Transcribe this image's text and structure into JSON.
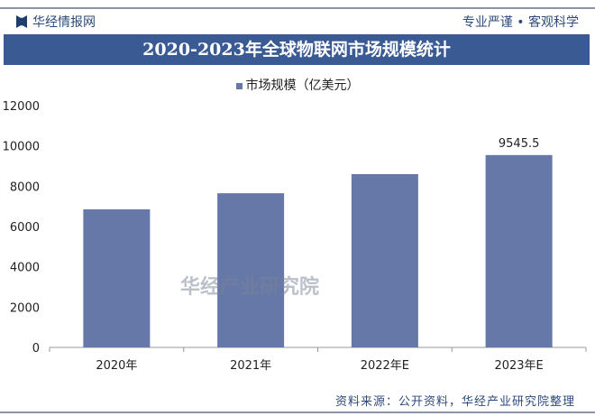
{
  "header": {
    "brand": "华经情报网",
    "slogan": "专业严谨 • 客观科学",
    "title": "2020-2023年全球物联网市场规模统计"
  },
  "footer": {
    "source": "资料来源：公开资料，华经产业研究院整理",
    "watermark": "华经产业研究院",
    "watermark_url": "www.huaon.com"
  },
  "colors": {
    "bar": "#6678a8",
    "title_bg": "#3a5a94"
  },
  "chart_data": {
    "type": "bar",
    "title": "2020-2023年全球物联网市场规模统计",
    "categories": [
      "2020年",
      "2021年",
      "2022年E",
      "2023年E"
    ],
    "series": [
      {
        "name": "市场规模（亿美元）",
        "values": [
          6850,
          7650,
          8600,
          9545.5
        ]
      }
    ],
    "data_labels": [
      null,
      null,
      null,
      "9545.5"
    ],
    "ylim": [
      0,
      12000
    ],
    "yticks": [
      0,
      2000,
      4000,
      6000,
      8000,
      10000,
      12000
    ],
    "legend": "top-center",
    "grid": false
  }
}
